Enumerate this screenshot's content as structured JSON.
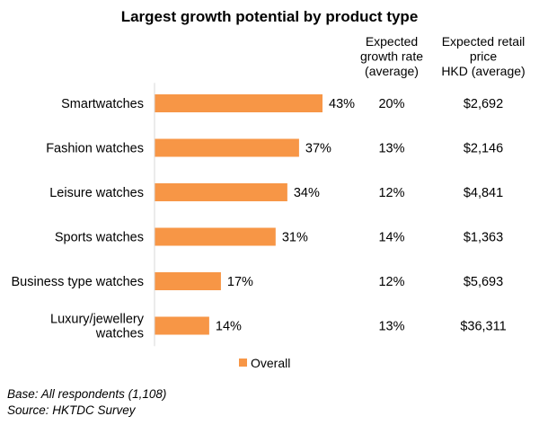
{
  "chart_data": {
    "type": "bar",
    "orientation": "horizontal",
    "title": "Largest growth potential by product type",
    "categories": [
      [
        "Smartwatches"
      ],
      [
        "Fashion watches"
      ],
      [
        "Leisure watches"
      ],
      [
        "Sports watches"
      ],
      [
        "Business type watches"
      ],
      [
        "Luxury/jewellery",
        "watches"
      ]
    ],
    "series": [
      {
        "name": "Overall",
        "values": [
          43,
          37,
          34,
          31,
          17,
          14
        ],
        "labels": [
          "43%",
          "37%",
          "34%",
          "31%",
          "17%",
          "14%"
        ]
      }
    ],
    "xlim": [
      0,
      50
    ],
    "grid": false,
    "legend_position": "bottom",
    "colors": {
      "bar": "#F79646"
    },
    "table": {
      "columns": [
        {
          "header": [
            "Expected",
            "growth rate",
            "(average)"
          ],
          "values": [
            "20%",
            "13%",
            "12%",
            "14%",
            "12%",
            "13%"
          ]
        },
        {
          "header": [
            "Expected retail",
            "price",
            "HKD (average)"
          ],
          "values": [
            "$2,692",
            "$2,146",
            "$4,841",
            "$1,363",
            "$5,693",
            "$36,311"
          ]
        }
      ]
    }
  },
  "footnotes": [
    "Base: All respondents (1,108)",
    "Source: HKTDC Survey"
  ]
}
